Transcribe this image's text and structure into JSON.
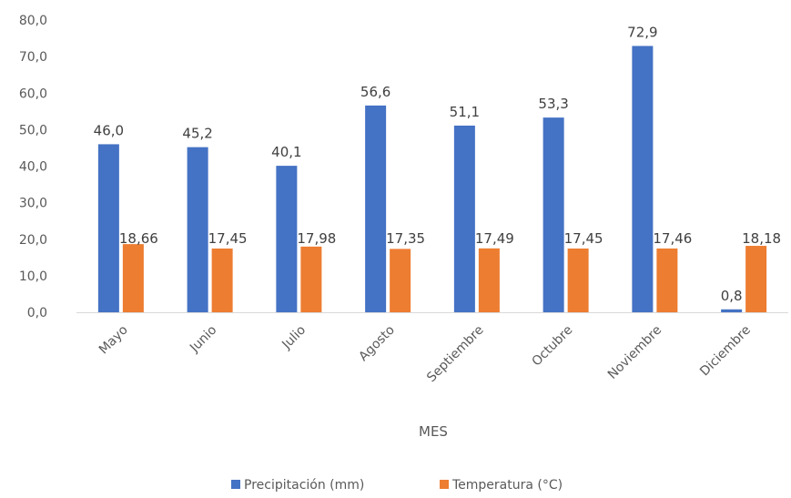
{
  "chart_data": {
    "type": "bar",
    "categories": [
      "Mayo",
      "Junio",
      "Julio",
      "Agosto",
      "Septiembre",
      "Octubre",
      "Noviembre",
      "Diciembre"
    ],
    "series": [
      {
        "name": "Precipitación (mm)",
        "values": [
          46.0,
          45.2,
          40.1,
          56.6,
          51.1,
          53.3,
          72.9,
          0.8
        ],
        "labels": [
          "46,0",
          "45,2",
          "40,1",
          "56,6",
          "51,1",
          "53,3",
          "72,9",
          "0,8"
        ],
        "color": "#4472C4"
      },
      {
        "name": "Temperatura (°C)",
        "values": [
          18.66,
          17.45,
          17.98,
          17.35,
          17.49,
          17.45,
          17.46,
          18.18
        ],
        "labels": [
          "18,66",
          "17,45",
          "17,98",
          "17,35",
          "17,49",
          "17,45",
          "17,46",
          "18,18"
        ],
        "color": "#ED7D31"
      }
    ],
    "title": "",
    "xlabel": "MES",
    "ylabel": "",
    "ylim": [
      0,
      80
    ],
    "yticks": [
      "0,0",
      "10,0",
      "20,0",
      "30,0",
      "40,0",
      "50,0",
      "60,0",
      "70,0",
      "80,0"
    ],
    "grid": false,
    "legend": "bottom"
  }
}
